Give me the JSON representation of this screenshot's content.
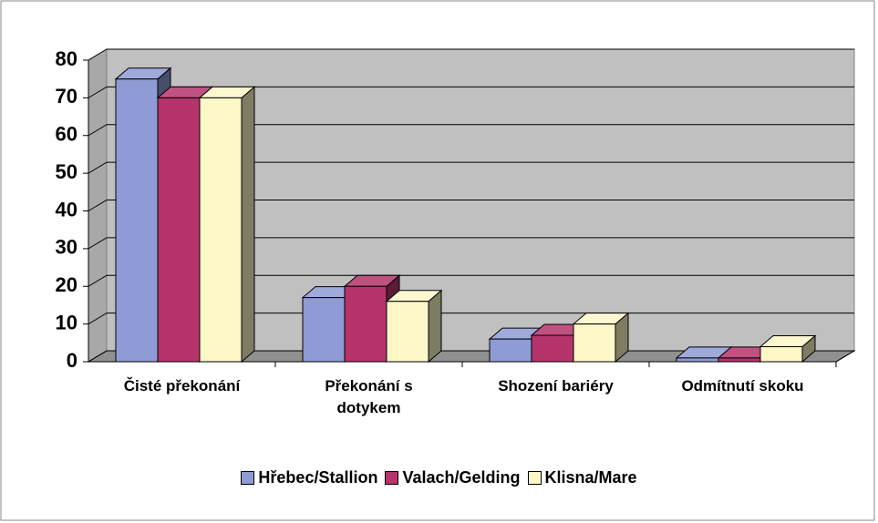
{
  "chart_data": {
    "type": "bar3d",
    "categories": [
      "Čisté překonání",
      "Překonání s\ndotykem",
      "Shození bariéry",
      "Odmítnutí skoku"
    ],
    "series": [
      {
        "name": "Hřebec/Stallion",
        "color": "#8e9bd4",
        "values": [
          75,
          17,
          6,
          1
        ]
      },
      {
        "name": "Valach/Gelding",
        "color": "#b5346b",
        "values": [
          70,
          20,
          7,
          1
        ]
      },
      {
        "name": "Klisna/Mare",
        "color": "#fdf7c8",
        "values": [
          70,
          16,
          10,
          4
        ]
      }
    ],
    "ylim": [
      0,
      80
    ],
    "yticks": [
      0,
      10,
      20,
      30,
      40,
      50,
      60,
      70,
      80
    ],
    "grid": true,
    "legend": "bottom"
  }
}
